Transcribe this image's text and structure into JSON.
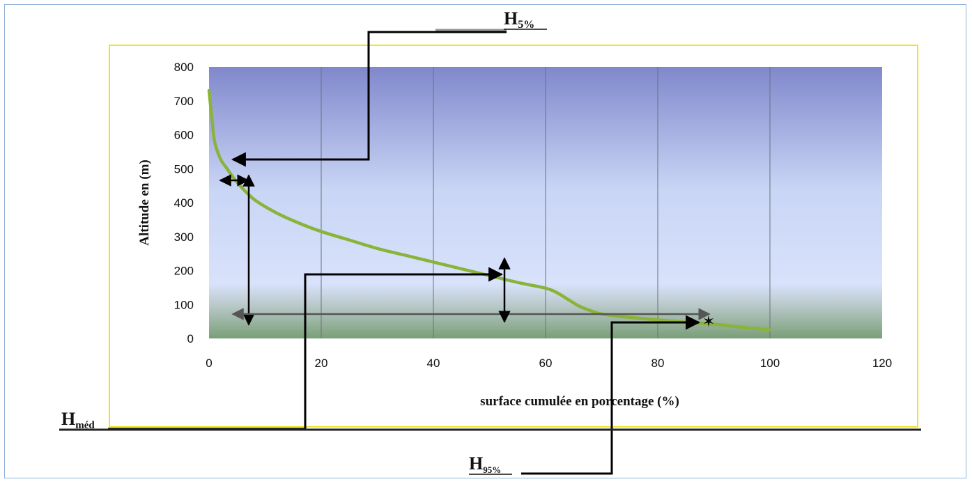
{
  "chart_data": {
    "type": "line",
    "title": "",
    "xlabel": "surface cumulée en porcentage (%)",
    "ylabel": "Altitude en (m)",
    "xlim": [
      0,
      120
    ],
    "ylim": [
      0,
      800
    ],
    "x_ticks": [
      0,
      20,
      40,
      60,
      80,
      100,
      120
    ],
    "y_ticks": [
      0,
      100,
      200,
      300,
      400,
      500,
      600,
      700,
      800
    ],
    "grid": "vertical",
    "series": [
      {
        "name": "",
        "color": "#8ab33a",
        "x": [
          0,
          0.5,
          1,
          2,
          3,
          5,
          8,
          12,
          16,
          20,
          25,
          30,
          35,
          40,
          45,
          50,
          55,
          60,
          62,
          64,
          66,
          68,
          70,
          75,
          80,
          85,
          90,
          95,
          100
        ],
        "y": [
          730,
          650,
          580,
          530,
          505,
          460,
          410,
          370,
          340,
          315,
          290,
          265,
          245,
          225,
          205,
          185,
          165,
          148,
          135,
          115,
          95,
          82,
          72,
          62,
          55,
          48,
          42,
          33,
          25
        ]
      }
    ]
  },
  "annotations": {
    "h5": {
      "main": "H",
      "sub": "5%"
    },
    "hmed": {
      "main": "H",
      "sub": "méd"
    },
    "h95": {
      "main": "H",
      "sub": "95%"
    }
  },
  "colors": {
    "plot_top": "#8088cc",
    "plot_mid": "#d8e2fb",
    "plot_bottom": "#7a9f78",
    "chart_border": "#f0e428",
    "curve": "#8ab33a",
    "frame": "#8fb3d9"
  }
}
